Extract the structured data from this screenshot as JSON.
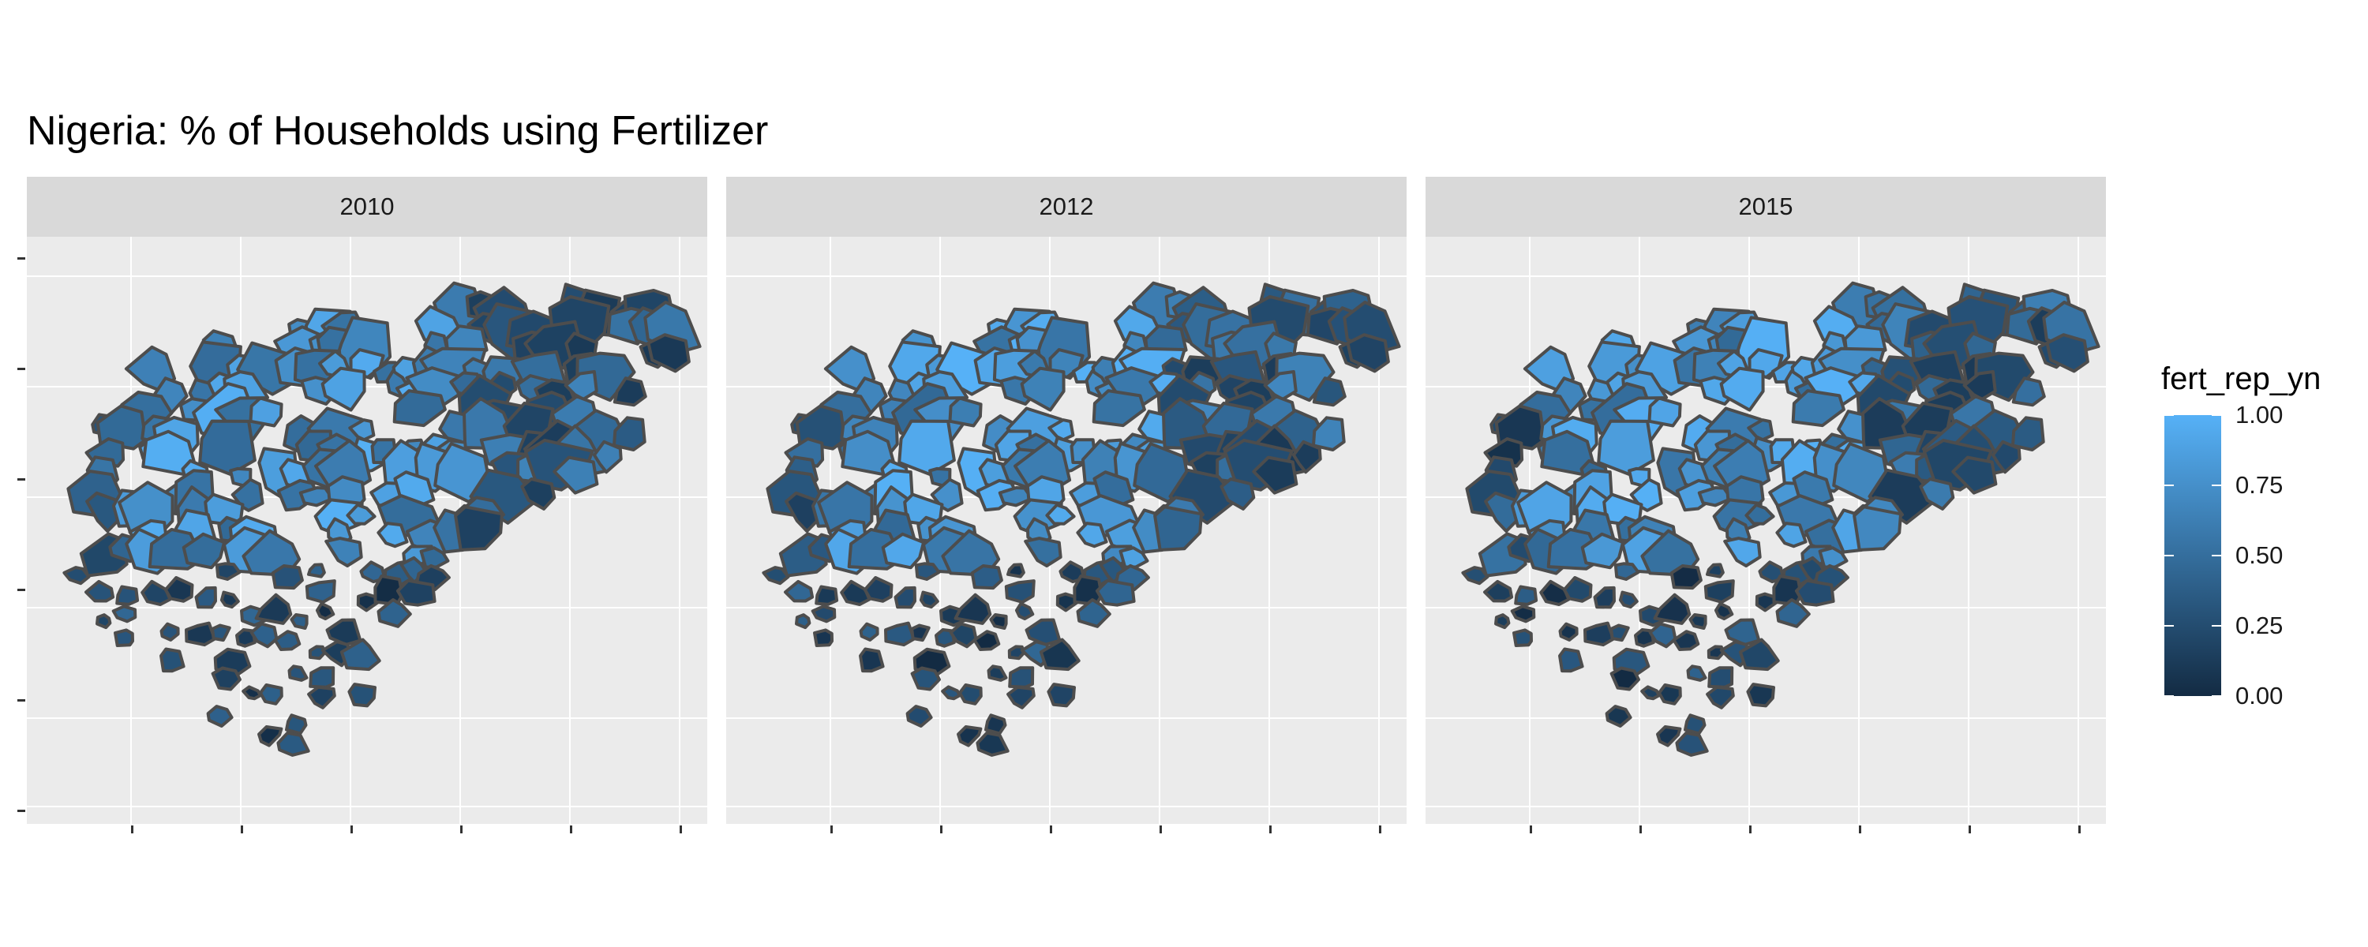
{
  "title": "Nigeria: % of Households using Fertilizer",
  "facets": [
    "2010",
    "2012",
    "2015"
  ],
  "legend": {
    "title": "fert_rep_yn",
    "ticks": [
      {
        "value": 1.0,
        "label": "1.00"
      },
      {
        "value": 0.75,
        "label": "0.75"
      },
      {
        "value": 0.5,
        "label": "0.50"
      },
      {
        "value": 0.25,
        "label": "0.25"
      },
      {
        "value": 0.0,
        "label": "0.00"
      }
    ],
    "low_color": "#132b43",
    "high_color": "#56b1f7"
  },
  "colors": {
    "panel_background": "#ebebeb",
    "strip_background": "#d9d9d9",
    "grid": "#ffffff",
    "border": "#4d4d4d"
  }
}
